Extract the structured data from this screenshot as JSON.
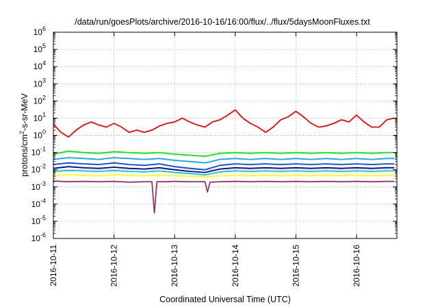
{
  "chart_data": {
    "type": "line",
    "title": "/data/run/goesPlots/archive/2016-10-16/16:00/flux/../flux/5daysMoonFluxes.txt",
    "xlabel": "Coordinated Universal Time (UTC)",
    "ylabel_parts": [
      "protons/cm",
      "2",
      "-s-sr-MeV"
    ],
    "yscale": "log",
    "ylim": [
      1e-06,
      1000000.0
    ],
    "xlim": [
      "2016-10-11T00:00",
      "2016-10-16T16:00"
    ],
    "grid": true,
    "x_ticks": [
      "2016-10-11",
      "2016-10-12",
      "2016-10-13",
      "2016-10-14",
      "2016-10-15",
      "2016-10-16"
    ],
    "y_ticks": [
      {
        "base": "10",
        "exp": "-6"
      },
      {
        "base": "10",
        "exp": "-5"
      },
      {
        "base": "10",
        "exp": "-4"
      },
      {
        "base": "10",
        "exp": "-3"
      },
      {
        "base": "10",
        "exp": "-2"
      },
      {
        "base": "10",
        "exp": "-1"
      },
      {
        "base": "10",
        "exp": "0"
      },
      {
        "base": "10",
        "exp": "1"
      },
      {
        "base": "10",
        "exp": "2"
      },
      {
        "base": "10",
        "exp": "3"
      },
      {
        "base": "10",
        "exp": "4"
      },
      {
        "base": "10",
        "exp": "5"
      },
      {
        "base": "10",
        "exp": "6"
      }
    ],
    "series": [
      {
        "color": "#ff0000",
        "x": [
          "2016-10-11T00:00",
          "2016-10-11T03:00",
          "2016-10-11T06:00",
          "2016-10-11T09:00",
          "2016-10-11T12:00",
          "2016-10-11T15:00",
          "2016-10-11T18:00",
          "2016-10-11T21:00",
          "2016-10-12T00:00",
          "2016-10-12T03:00",
          "2016-10-12T06:00",
          "2016-10-12T09:00",
          "2016-10-12T12:00",
          "2016-10-12T15:00",
          "2016-10-12T18:00",
          "2016-10-12T21:00",
          "2016-10-13T00:00",
          "2016-10-13T03:00",
          "2016-10-13T06:00",
          "2016-10-13T09:00",
          "2016-10-13T12:00",
          "2016-10-13T15:00",
          "2016-10-13T18:00",
          "2016-10-13T21:00",
          "2016-10-14T00:00",
          "2016-10-14T03:00",
          "2016-10-14T06:00",
          "2016-10-14T09:00",
          "2016-10-14T12:00",
          "2016-10-14T15:00",
          "2016-10-14T18:00",
          "2016-10-14T21:00",
          "2016-10-15T00:00",
          "2016-10-15T03:00",
          "2016-10-15T06:00",
          "2016-10-15T09:00",
          "2016-10-15T12:00",
          "2016-10-15T15:00",
          "2016-10-15T18:00",
          "2016-10-15T21:00",
          "2016-10-16T00:00",
          "2016-10-16T03:00",
          "2016-10-16T06:00",
          "2016-10-16T09:00",
          "2016-10-16T12:00",
          "2016-10-16T15:00"
        ],
        "values": [
          4.5,
          1.5,
          0.8,
          2,
          4,
          6,
          4,
          3,
          5,
          3,
          1.5,
          2,
          1.5,
          2,
          3.5,
          5,
          6,
          10,
          6,
          4,
          3,
          6,
          8,
          15,
          30,
          10,
          5,
          3,
          1.5,
          3,
          8,
          12,
          25,
          12,
          5,
          3,
          3.5,
          5,
          8,
          6,
          15,
          6,
          3,
          3,
          8,
          10
        ]
      },
      {
        "color": "#00ee00",
        "x": [
          "2016-10-11T00:00",
          "2016-10-11T06:00",
          "2016-10-11T12:00",
          "2016-10-11T18:00",
          "2016-10-12T00:00",
          "2016-10-12T06:00",
          "2016-10-12T12:00",
          "2016-10-12T18:00",
          "2016-10-13T00:00",
          "2016-10-13T06:00",
          "2016-10-13T12:00",
          "2016-10-13T18:00",
          "2016-10-14T00:00",
          "2016-10-14T06:00",
          "2016-10-14T12:00",
          "2016-10-14T18:00",
          "2016-10-15T00:00",
          "2016-10-15T06:00",
          "2016-10-15T12:00",
          "2016-10-15T18:00",
          "2016-10-16T00:00",
          "2016-10-16T06:00",
          "2016-10-16T12:00",
          "2016-10-16T15:00"
        ],
        "values": [
          0.08,
          0.12,
          0.1,
          0.09,
          0.11,
          0.1,
          0.09,
          0.1,
          0.08,
          0.07,
          0.06,
          0.09,
          0.1,
          0.09,
          0.1,
          0.09,
          0.1,
          0.09,
          0.1,
          0.09,
          0.1,
          0.09,
          0.1,
          0.1
        ]
      },
      {
        "color": "#00aaff",
        "x": [
          "2016-10-11T00:00",
          "2016-10-11T06:00",
          "2016-10-11T12:00",
          "2016-10-11T18:00",
          "2016-10-12T00:00",
          "2016-10-12T06:00",
          "2016-10-12T12:00",
          "2016-10-12T18:00",
          "2016-10-13T00:00",
          "2016-10-13T06:00",
          "2016-10-13T12:00",
          "2016-10-13T18:00",
          "2016-10-14T00:00",
          "2016-10-14T06:00",
          "2016-10-14T12:00",
          "2016-10-14T18:00",
          "2016-10-15T00:00",
          "2016-10-15T06:00",
          "2016-10-15T12:00",
          "2016-10-15T18:00",
          "2016-10-16T00:00",
          "2016-10-16T06:00",
          "2016-10-16T12:00",
          "2016-10-16T15:00"
        ],
        "values": [
          0.04,
          0.05,
          0.045,
          0.04,
          0.05,
          0.045,
          0.04,
          0.045,
          0.035,
          0.03,
          0.025,
          0.04,
          0.045,
          0.04,
          0.045,
          0.04,
          0.045,
          0.04,
          0.045,
          0.04,
          0.045,
          0.04,
          0.045,
          0.045
        ]
      },
      {
        "color": "#0044ff",
        "x": [
          "2016-10-11T00:00",
          "2016-10-11T06:00",
          "2016-10-11T12:00",
          "2016-10-11T18:00",
          "2016-10-12T00:00",
          "2016-10-12T06:00",
          "2016-10-12T12:00",
          "2016-10-12T18:00",
          "2016-10-13T00:00",
          "2016-10-13T06:00",
          "2016-10-13T12:00",
          "2016-10-13T18:00",
          "2016-10-14T00:00",
          "2016-10-14T06:00",
          "2016-10-14T12:00",
          "2016-10-14T18:00",
          "2016-10-15T00:00",
          "2016-10-15T06:00",
          "2016-10-15T12:00",
          "2016-10-15T18:00",
          "2016-10-16T00:00",
          "2016-10-16T06:00",
          "2016-10-16T12:00",
          "2016-10-16T15:00"
        ],
        "values": [
          0.02,
          0.025,
          0.022,
          0.02,
          0.025,
          0.02,
          0.018,
          0.022,
          0.015,
          0.012,
          0.01,
          0.018,
          0.022,
          0.02,
          0.022,
          0.02,
          0.022,
          0.02,
          0.022,
          0.02,
          0.022,
          0.02,
          0.022,
          0.022
        ]
      },
      {
        "color": "#0000aa",
        "x": [
          "2016-10-11T00:00",
          "2016-10-11T06:00",
          "2016-10-11T12:00",
          "2016-10-11T18:00",
          "2016-10-12T00:00",
          "2016-10-12T06:00",
          "2016-10-12T12:00",
          "2016-10-12T18:00",
          "2016-10-13T00:00",
          "2016-10-13T06:00",
          "2016-10-13T12:00",
          "2016-10-13T18:00",
          "2016-10-14T00:00",
          "2016-10-14T06:00",
          "2016-10-14T12:00",
          "2016-10-14T18:00",
          "2016-10-15T00:00",
          "2016-10-15T06:00",
          "2016-10-15T12:00",
          "2016-10-15T18:00",
          "2016-10-16T00:00",
          "2016-10-16T06:00",
          "2016-10-16T12:00",
          "2016-10-16T15:00"
        ],
        "values": [
          0.012,
          0.015,
          0.013,
          0.012,
          0.014,
          0.012,
          0.011,
          0.013,
          0.01,
          0.008,
          0.007,
          0.011,
          0.013,
          0.012,
          0.013,
          0.012,
          0.013,
          0.012,
          0.013,
          0.012,
          0.013,
          0.012,
          0.013,
          0.013
        ]
      },
      {
        "color": "#00cccc",
        "x": [
          "2016-10-11T00:00",
          "2016-10-11T06:00",
          "2016-10-11T12:00",
          "2016-10-11T18:00",
          "2016-10-12T00:00",
          "2016-10-12T06:00",
          "2016-10-12T12:00",
          "2016-10-12T18:00",
          "2016-10-13T00:00",
          "2016-10-13T06:00",
          "2016-10-13T12:00",
          "2016-10-13T18:00",
          "2016-10-14T00:00",
          "2016-10-14T06:00",
          "2016-10-14T12:00",
          "2016-10-14T18:00",
          "2016-10-15T00:00",
          "2016-10-15T06:00",
          "2016-10-15T12:00",
          "2016-10-15T18:00",
          "2016-10-16T00:00",
          "2016-10-16T06:00",
          "2016-10-16T12:00",
          "2016-10-16T15:00"
        ],
        "values": [
          0.008,
          0.009,
          0.0085,
          0.008,
          0.009,
          0.008,
          0.0075,
          0.0085,
          0.007,
          0.006,
          0.005,
          0.0075,
          0.0085,
          0.008,
          0.0085,
          0.008,
          0.0085,
          0.008,
          0.0085,
          0.008,
          0.0085,
          0.008,
          0.0085,
          0.0085
        ]
      },
      {
        "color": "#ffff00",
        "x": [
          "2016-10-11T00:00",
          "2016-10-11T06:00",
          "2016-10-11T12:00",
          "2016-10-11T18:00",
          "2016-10-12T00:00",
          "2016-10-12T06:00",
          "2016-10-12T12:00",
          "2016-10-12T18:00",
          "2016-10-13T00:00",
          "2016-10-13T06:00",
          "2016-10-13T12:00",
          "2016-10-13T18:00",
          "2016-10-14T00:00",
          "2016-10-14T06:00",
          "2016-10-14T12:00",
          "2016-10-14T18:00",
          "2016-10-15T00:00",
          "2016-10-15T06:00",
          "2016-10-15T12:00",
          "2016-10-15T18:00",
          "2016-10-16T00:00",
          "2016-10-16T06:00",
          "2016-10-16T12:00",
          "2016-10-16T15:00"
        ],
        "values": [
          0.0045,
          0.005,
          0.0048,
          0.0045,
          0.005,
          0.0047,
          0.0045,
          0.0048,
          0.0045,
          0.004,
          0.0038,
          0.0045,
          0.0048,
          0.0046,
          0.0048,
          0.0046,
          0.0048,
          0.0046,
          0.0048,
          0.0046,
          0.0048,
          0.0046,
          0.0048,
          0.0048
        ]
      },
      {
        "color": "#993366",
        "x": [
          "2016-10-11T00:00",
          "2016-10-11T06:00",
          "2016-10-11T12:00",
          "2016-10-11T18:00",
          "2016-10-12T00:00",
          "2016-10-12T06:00",
          "2016-10-12T12:00",
          "2016-10-12T15:00",
          "2016-10-12T16:00",
          "2016-10-12T17:00",
          "2016-10-12T20:00",
          "2016-10-13T00:00",
          "2016-10-13T06:00",
          "2016-10-13T12:00",
          "2016-10-13T13:00",
          "2016-10-13T14:00",
          "2016-10-13T18:00",
          "2016-10-14T00:00",
          "2016-10-14T06:00",
          "2016-10-14T12:00",
          "2016-10-14T18:00",
          "2016-10-15T00:00",
          "2016-10-15T06:00",
          "2016-10-15T12:00",
          "2016-10-15T18:00",
          "2016-10-16T00:00",
          "2016-10-16T06:00",
          "2016-10-16T12:00",
          "2016-10-16T15:00"
        ],
        "values": [
          0.0022,
          0.002,
          0.0021,
          0.002,
          0.0021,
          0.0019,
          0.002,
          0.002,
          3e-05,
          0.002,
          0.002,
          0.0021,
          0.002,
          0.002,
          0.0005,
          0.0019,
          0.002,
          0.0021,
          0.002,
          0.0021,
          0.002,
          0.0021,
          0.002,
          0.0021,
          0.002,
          0.0021,
          0.002,
          0.0021,
          0.0021
        ]
      }
    ]
  }
}
